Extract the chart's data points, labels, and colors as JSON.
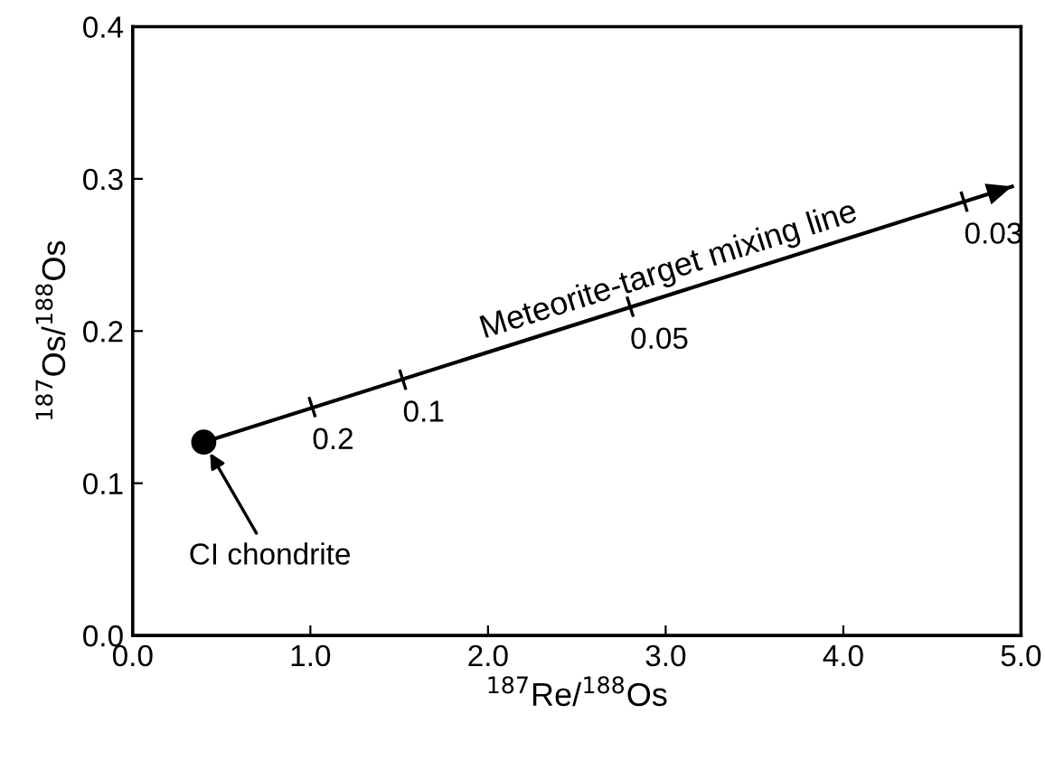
{
  "chart_data": {
    "type": "line",
    "xlabel": "$^{187}$Re/$^{188}$Os",
    "ylabel": "$^{187}$Os/$^{188}$Os",
    "xlim": [
      0.0,
      5.0
    ],
    "xticks": [
      {
        "value": 0,
        "label": "0.0"
      },
      {
        "value": 1,
        "label": "1.0"
      },
      {
        "value": 2,
        "label": "2.0"
      },
      {
        "value": 3,
        "label": "3.0"
      },
      {
        "value": 4,
        "label": "4.0"
      },
      {
        "value": 5,
        "label": "5.0"
      }
    ],
    "ylim": [
      0.0,
      0.4
    ],
    "yticks": [
      {
        "value": 0,
        "label": "0.0"
      },
      0.1,
      0.2,
      0.3,
      0.4
    ],
    "grid": false,
    "series": [
      {
        "color": "#000000",
        "marker": "circle",
        "x": [
          0.4,
          4.95
        ],
        "values": [
          0.127,
          0.295
        ]
      }
    ],
    "annotations": [
      {
        "text": "CI chondrite",
        "x": 0.4,
        "y": 0.127
      },
      {
        "text": "Meteorite-target mixing line",
        "x": 2.0,
        "y": 0.186
      },
      {
        "text": "0.2",
        "x": 1.01,
        "y": 0.15
      },
      {
        "text": "0.1",
        "x": 1.52,
        "y": 0.168
      },
      {
        "text": "0.05",
        "x": 2.8,
        "y": 0.216
      },
      {
        "text": "0.03",
        "x": 4.68,
        "y": 0.285
      }
    ]
  }
}
